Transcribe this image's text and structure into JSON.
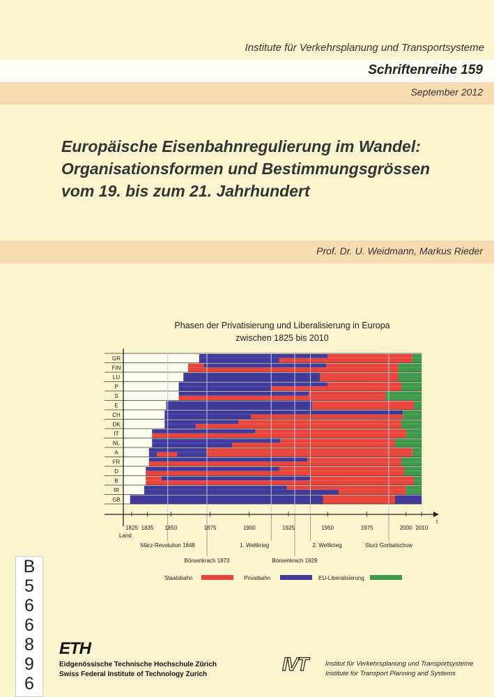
{
  "header": {
    "institute": "Institute für Verkehrsplanung und Transportsysteme",
    "series": "Schriftenreihe 159",
    "date": "September 2012"
  },
  "title_lines": [
    "Europäische Eisenbahnregulierung im Wandel:",
    "Organisationsformen und Bestimmungsgrössen",
    "vom 19. bis zum 21. Jahrhundert"
  ],
  "authors": "Prof. Dr. U. Weidmann, Markus Rieder",
  "colors": {
    "background": "#fbf5cf",
    "band_peach": "#f7dcb2",
    "S": "#e8453c",
    "P": "#3f3a9c",
    "E": "#3f9a4c"
  },
  "chart_data": {
    "type": "bar",
    "subtype": "horizontal-timeline",
    "title": [
      "Phasen der Privatisierung und Liberalisierung in Europa",
      "zwischen 1825 bis 2010"
    ],
    "xlabel": "t",
    "ylabel": "Land",
    "xlim": [
      1820,
      2010
    ],
    "x_ticks": [
      1825,
      1835,
      1850,
      1875,
      1900,
      1925,
      1950,
      1975,
      2000,
      2010
    ],
    "legend": [
      {
        "key": "S",
        "label": "Staatsbahn"
      },
      {
        "key": "P",
        "label": "Privatbahn"
      },
      {
        "key": "E",
        "label": "EU-Liberalisierung"
      }
    ],
    "events": [
      {
        "year": 1848,
        "label": "März-Revolution 1848",
        "level": 1,
        "align": "middle"
      },
      {
        "year": 1873,
        "label": "Börsenkrach 1873",
        "level": 2,
        "align": "middle"
      },
      {
        "year": 1914,
        "label": "1. Weltkrieg",
        "level": 1,
        "align": "end"
      },
      {
        "year": 1929,
        "label": "Börsenkrach 1929",
        "level": 2,
        "align": "middle"
      },
      {
        "year": 1939,
        "label": "2. Weltkrieg",
        "level": 1,
        "align": "start"
      },
      {
        "year": 1989,
        "label": "Sturz Gorbatschow",
        "level": 1,
        "align": "middle"
      }
    ],
    "countries": [
      {
        "code": "GR",
        "top": [
          [
            1868,
            1950,
            "P"
          ],
          [
            1950,
            2004,
            "S"
          ],
          [
            2004,
            2010,
            "E"
          ]
        ],
        "bottom": [
          [
            1868,
            1919,
            "P"
          ],
          [
            1919,
            2004,
            "S"
          ],
          [
            2004,
            2010,
            "E"
          ]
        ]
      },
      {
        "code": "FIN",
        "top": [
          [
            1861,
            1871,
            "S"
          ],
          [
            1871,
            1949,
            "P"
          ],
          [
            1949,
            1995,
            "S"
          ],
          [
            1995,
            2010,
            "E"
          ]
        ],
        "bottom": [
          [
            1861,
            1995,
            "S"
          ],
          [
            1995,
            2010,
            "E"
          ]
        ]
      },
      {
        "code": "LU",
        "top": [
          [
            1858,
            1945,
            "P"
          ],
          [
            1945,
            1995,
            "S"
          ],
          [
            1995,
            2010,
            "E"
          ]
        ]
      },
      {
        "code": "P",
        "top": [
          [
            1855,
            1950,
            "P"
          ],
          [
            1950,
            1997,
            "S"
          ],
          [
            1997,
            2010,
            "E"
          ]
        ],
        "bottom": [
          [
            1855,
            1914,
            "P"
          ],
          [
            1914,
            1997,
            "S"
          ],
          [
            1997,
            2010,
            "E"
          ]
        ]
      },
      {
        "code": "S",
        "top": [
          [
            1855,
            1938,
            "P"
          ],
          [
            1938,
            1987,
            "S"
          ],
          [
            1987,
            2010,
            "E"
          ]
        ],
        "bottom": [
          [
            1855,
            1987,
            "S"
          ],
          [
            1987,
            2010,
            "E"
          ]
        ]
      },
      {
        "code": "E",
        "top": [
          [
            1847,
            1940,
            "P"
          ],
          [
            1940,
            2005,
            "S"
          ],
          [
            2005,
            2010,
            "E"
          ]
        ]
      },
      {
        "code": "CH",
        "top": [
          [
            1846,
            1998,
            "P"
          ],
          [
            1998,
            2010,
            "E"
          ]
        ],
        "bottom": [
          [
            1846,
            1901,
            "P"
          ],
          [
            1901,
            1998,
            "S"
          ],
          [
            1998,
            2010,
            "E"
          ]
        ]
      },
      {
        "code": "DK",
        "top": [
          [
            1846,
            1893,
            "P"
          ],
          [
            1893,
            1997,
            "S"
          ],
          [
            1997,
            2010,
            "E"
          ]
        ],
        "bottom": [
          [
            1846,
            1866,
            "P"
          ],
          [
            1866,
            1997,
            "S"
          ],
          [
            1997,
            2010,
            "E"
          ]
        ]
      },
      {
        "code": "IT",
        "top": [
          [
            1838,
            1904,
            "P"
          ],
          [
            1904,
            2000,
            "S"
          ],
          [
            2000,
            2010,
            "E"
          ]
        ],
        "bottom": [
          [
            1838,
            2000,
            "S"
          ],
          [
            2000,
            2010,
            "E"
          ]
        ]
      },
      {
        "code": "NL",
        "top": [
          [
            1838,
            1920,
            "P"
          ],
          [
            1920,
            1993,
            "S"
          ],
          [
            1993,
            2010,
            "E"
          ]
        ],
        "bottom": [
          [
            1838,
            1889,
            "P"
          ],
          [
            1889,
            1993,
            "S"
          ],
          [
            1993,
            2010,
            "E"
          ]
        ]
      },
      {
        "code": "A",
        "top": [
          [
            1836,
            1873,
            "P"
          ],
          [
            1873,
            2004,
            "S"
          ],
          [
            2004,
            2010,
            "E"
          ]
        ],
        "bottom": [
          [
            1836,
            1841,
            "P"
          ],
          [
            1841,
            1854,
            "S"
          ],
          [
            1854,
            1873,
            "P"
          ],
          [
            1873,
            2004,
            "S"
          ],
          [
            2004,
            2010,
            "E"
          ]
        ]
      },
      {
        "code": "FR",
        "top": [
          [
            1836,
            1937,
            "P"
          ],
          [
            1937,
            1997,
            "S"
          ],
          [
            1997,
            2010,
            "E"
          ]
        ],
        "bottom": [
          [
            1836,
            1997,
            "S"
          ],
          [
            1997,
            2010,
            "E"
          ]
        ]
      },
      {
        "code": "D",
        "top": [
          [
            1834,
            1919,
            "P"
          ],
          [
            1919,
            1999,
            "S"
          ],
          [
            1999,
            2010,
            "E"
          ]
        ],
        "bottom": [
          [
            1834,
            1999,
            "S"
          ],
          [
            1999,
            2010,
            "E"
          ]
        ]
      },
      {
        "code": "B",
        "top": [
          [
            1834,
            1844,
            "S"
          ],
          [
            1844,
            1939,
            "P"
          ],
          [
            1939,
            2005,
            "S"
          ],
          [
            2005,
            2010,
            "E"
          ]
        ],
        "bottom": [
          [
            1834,
            2005,
            "S"
          ],
          [
            2005,
            2010,
            "E"
          ]
        ]
      },
      {
        "code": "IR",
        "top": [
          [
            1833,
            1924,
            "P"
          ],
          [
            1924,
            2000,
            "S"
          ],
          [
            2000,
            2010,
            "E"
          ]
        ],
        "bottom": [
          [
            1833,
            1957,
            "P"
          ],
          [
            1957,
            2000,
            "S"
          ],
          [
            2000,
            2010,
            "E"
          ]
        ]
      },
      {
        "code": "GB",
        "top": [
          [
            1824,
            1947,
            "P"
          ],
          [
            1947,
            1993,
            "S"
          ],
          [
            1993,
            2010,
            "P"
          ]
        ]
      }
    ]
  },
  "call_number": [
    "B",
    "5",
    "6",
    "6",
    "8",
    "9",
    "6"
  ],
  "footer": {
    "eth_logo": "ETH",
    "eth_lines": [
      "Eidgenössische Technische Hochschule Zürich",
      "Swiss Federal Institute of Technology Zurich"
    ],
    "ivt_logo": "IVT",
    "ivt_lines": [
      "Institut für Verkehrsplanung und Transportsysteme",
      "Institute for Transport Planning and Systems"
    ]
  }
}
